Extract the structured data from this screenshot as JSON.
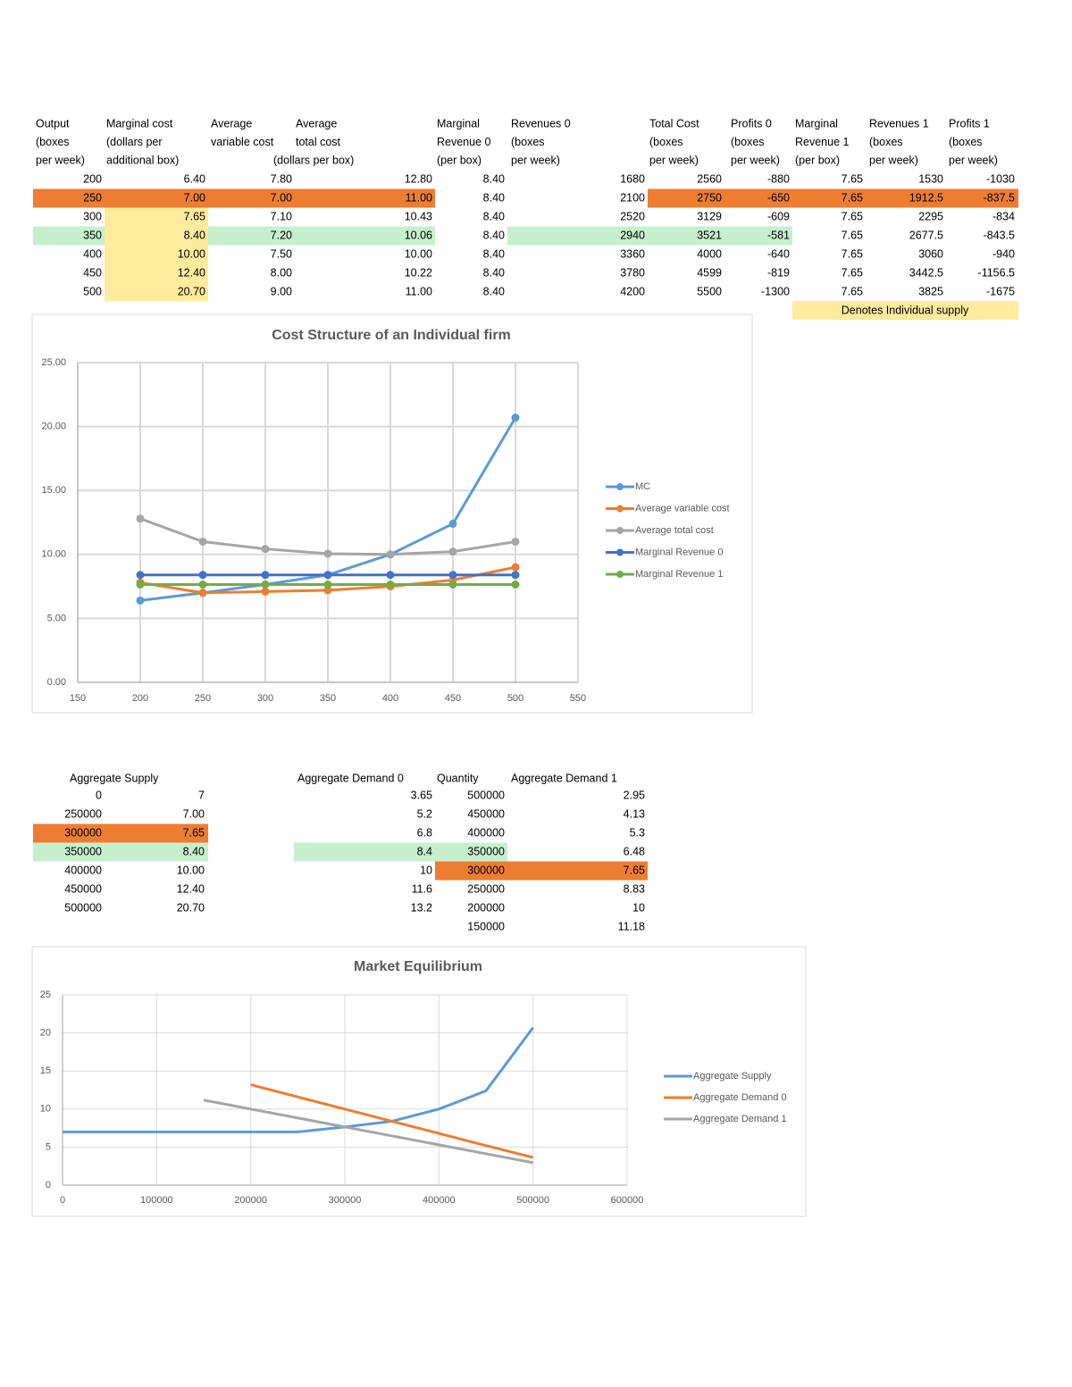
{
  "table": {
    "headers": [
      [
        "Output",
        "(boxes",
        "per week)"
      ],
      [
        "Marginal cost",
        "(dollars per",
        "additional box)"
      ],
      [
        "Average",
        "variable cost"
      ],
      [
        "Average",
        "total cost",
        "(dollars per box)"
      ],
      [
        "Marginal",
        "Revenue 0",
        "(per box)"
      ],
      [
        "Revenues 0",
        "(boxes",
        "per week)"
      ],
      [
        "Total Cost",
        "(boxes",
        "per week)"
      ],
      [
        "Profits 0",
        "(boxes",
        "per week)"
      ],
      [
        "Marginal",
        "Revenue 1",
        "(per box)"
      ],
      [
        "Revenues 1",
        "(boxes",
        "per week)"
      ],
      [
        "Profits 1",
        "(boxes",
        "per week)"
      ]
    ],
    "rows": [
      [
        "200",
        "6.40",
        "7.80",
        "12.80",
        "8.40",
        "1680",
        "2560",
        "-880",
        "7.65",
        "1530",
        "-1030"
      ],
      [
        "250",
        "7.00",
        "7.00",
        "11.00",
        "8.40",
        "2100",
        "2750",
        "-650",
        "7.65",
        "1912.5",
        "-837.5"
      ],
      [
        "300",
        "7.65",
        "7.10",
        "10.43",
        "8.40",
        "2520",
        "3129",
        "-609",
        "7.65",
        "2295",
        "-834"
      ],
      [
        "350",
        "8.40",
        "7.20",
        "10.06",
        "8.40",
        "2940",
        "3521",
        "-581",
        "7.65",
        "2677.5",
        "-843.5"
      ],
      [
        "400",
        "10.00",
        "7.50",
        "10.00",
        "8.40",
        "3360",
        "4000",
        "-640",
        "7.65",
        "3060",
        "-940"
      ],
      [
        "450",
        "12.40",
        "8.00",
        "10.22",
        "8.40",
        "3780",
        "4599",
        "-819",
        "7.65",
        "3442.5",
        "-1156.5"
      ],
      [
        "500",
        "20.70",
        "9.00",
        "11.00",
        "8.40",
        "4200",
        "5500",
        "-1300",
        "7.65",
        "3825",
        "-1675"
      ]
    ],
    "note": "Denotes Individual supply"
  },
  "supply_table": {
    "header": "Aggregate Supply",
    "rows": [
      [
        "0",
        "7"
      ],
      [
        "250000",
        "7.00"
      ],
      [
        "300000",
        "7.65"
      ],
      [
        "350000",
        "8.40"
      ],
      [
        "400000",
        "10.00"
      ],
      [
        "450000",
        "12.40"
      ],
      [
        "500000",
        "20.70"
      ]
    ]
  },
  "demand_table": {
    "headers": [
      "Aggregate Demand 0",
      "Quantity",
      "Aggregate Demand 1"
    ],
    "columns": [
      [
        "3.65",
        "5.2",
        "6.8",
        "8.4",
        "10",
        "11.6",
        "13.2"
      ],
      [
        "500000",
        "450000",
        "400000",
        "350000",
        "300000",
        "250000",
        "200000",
        "150000"
      ],
      [
        "2.95",
        "4.13",
        "5.3",
        "6.48",
        "7.65",
        "8.83",
        "10",
        "11.18"
      ]
    ]
  },
  "chart_data": [
    {
      "type": "line",
      "title": "Cost Structure of an Individual firm",
      "markers": true,
      "grid": true,
      "x": [
        200,
        250,
        300,
        350,
        400,
        450,
        500
      ],
      "xlim": [
        150,
        550
      ],
      "xticks": [
        150,
        200,
        250,
        300,
        350,
        400,
        450,
        500,
        550
      ],
      "ylim": [
        0,
        25
      ],
      "yticks": [
        {
          "value": 0,
          "label": "0.00"
        },
        {
          "value": 5,
          "label": "5.00"
        },
        {
          "value": 10,
          "label": "10.00"
        },
        {
          "value": 15,
          "label": "15.00"
        },
        {
          "value": 20,
          "label": "20.00"
        },
        {
          "value": 25,
          "label": "25.00"
        }
      ],
      "legend": "right",
      "series": [
        {
          "name": "MC",
          "color": "#5b9bd5",
          "values": [
            6.4,
            7,
            7.65,
            8.4,
            10,
            12.4,
            20.7
          ]
        },
        {
          "name": "Average variable cost",
          "color": "#ed7d31",
          "values": [
            7.8,
            7,
            7.1,
            7.2,
            7.5,
            8,
            9
          ]
        },
        {
          "name": "Average total cost",
          "color": "#a5a5a5",
          "values": [
            12.8,
            11,
            10.43,
            10.06,
            10,
            10.22,
            11
          ]
        },
        {
          "name": "Marginal Revenue 0",
          "color": "#4472c4",
          "values": [
            8.4,
            8.4,
            8.4,
            8.4,
            8.4,
            8.4,
            8.4
          ]
        },
        {
          "name": "Marginal Revenue 1",
          "color": "#70ad47",
          "values": [
            7.65,
            7.65,
            7.65,
            7.65,
            7.65,
            7.65,
            7.65
          ]
        }
      ]
    },
    {
      "type": "line",
      "title": "Market Equilibrium",
      "markers": false,
      "grid": true,
      "xlim": [
        0,
        600000
      ],
      "xticks": [
        0,
        100000,
        200000,
        300000,
        400000,
        500000,
        600000
      ],
      "ylim": [
        0,
        25
      ],
      "yticks": [
        0,
        5,
        10,
        15,
        20,
        25
      ],
      "legend": "right",
      "series": [
        {
          "name": "Aggregate Supply",
          "color": "#5b9bd5",
          "x": [
            0,
            250000,
            300000,
            350000,
            400000,
            450000,
            500000
          ],
          "values": [
            7,
            7,
            7.65,
            8.4,
            10,
            12.4,
            20.7
          ]
        },
        {
          "name": "Aggregate Demand 0",
          "color": "#ed7d31",
          "x": [
            500000,
            450000,
            400000,
            350000,
            300000,
            250000,
            200000
          ],
          "values": [
            3.65,
            5.2,
            6.8,
            8.4,
            10,
            11.6,
            13.2
          ]
        },
        {
          "name": "Aggregate Demand 1",
          "color": "#a5a5a5",
          "x": [
            500000,
            450000,
            400000,
            350000,
            300000,
            250000,
            200000,
            150000
          ],
          "values": [
            2.95,
            4.13,
            5.3,
            6.48,
            7.65,
            8.83,
            10,
            11.18
          ]
        }
      ]
    }
  ]
}
